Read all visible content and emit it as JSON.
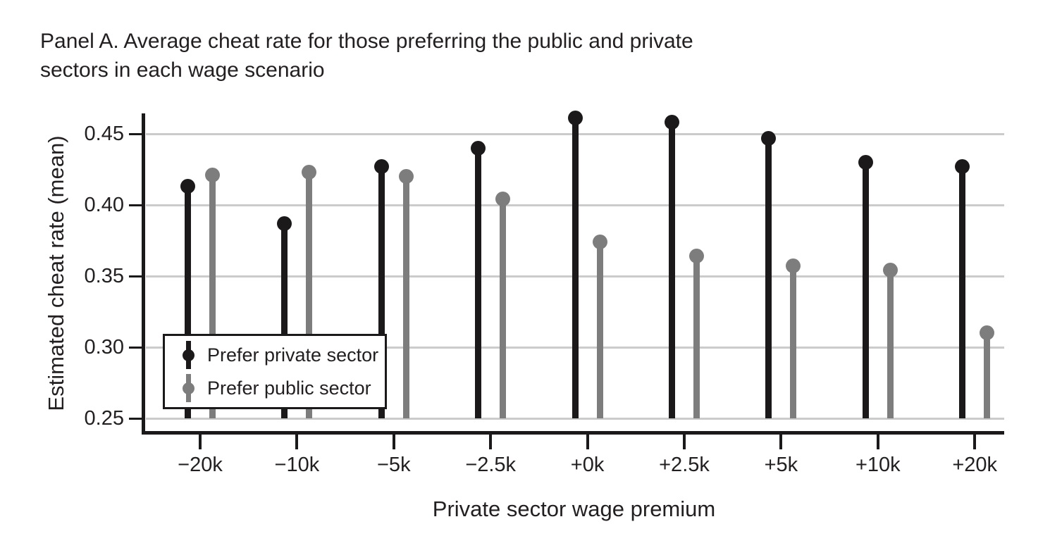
{
  "title": {
    "line1": "Panel A. Average cheat rate for those preferring the public and private",
    "line2": "sectors in each wage scenario"
  },
  "chart_data": {
    "type": "lollipop",
    "title": "Panel A. Average cheat rate for those preferring the public and private sectors in each wage scenario",
    "xlabel": "Private sector wage premium",
    "ylabel": "Estimated cheat rate (mean)",
    "categories": [
      "−20k",
      "−10k",
      "−5k",
      "−2.5k",
      "+0k",
      "+2.5k",
      "+5k",
      "+10k",
      "+20k"
    ],
    "series": [
      {
        "name": "Prefer private sector",
        "color": "#1b191a",
        "values": [
          0.413,
          0.387,
          0.427,
          0.44,
          0.461,
          0.458,
          0.447,
          0.43,
          0.427
        ]
      },
      {
        "name": "Prefer public sector",
        "color": "#7d7d7d",
        "values": [
          0.421,
          0.423,
          0.42,
          0.404,
          0.374,
          0.364,
          0.357,
          0.354,
          0.31
        ]
      }
    ],
    "yticks": [
      0.25,
      0.3,
      0.35,
      0.4,
      0.45
    ],
    "ytick_labels": [
      "0.25",
      "0.30",
      "0.35",
      "0.40",
      "0.45"
    ],
    "ylim": [
      0.25,
      0.465
    ],
    "baseline": 0.25,
    "grid": "horizontal",
    "legend_position": "inside-lower-left"
  },
  "colors": {
    "private_series": "#1b191a",
    "public_series": "#7d7d7d",
    "gridline": "#cbcbcb",
    "axis": "#1b191a",
    "text": "#231f20",
    "background": "#ffffff"
  }
}
